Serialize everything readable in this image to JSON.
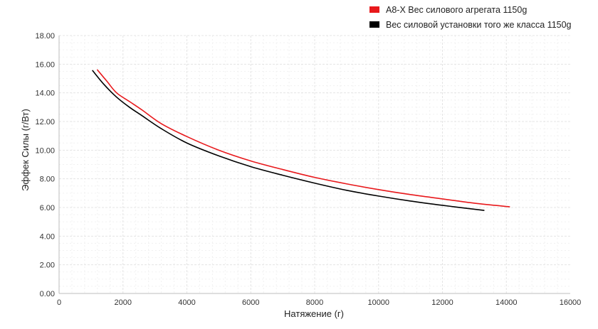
{
  "chart_data": {
    "type": "line",
    "xlabel": "Натяжение (г)",
    "ylabel": "Эффек Силы (г/Вт)",
    "xlim": [
      0,
      16000
    ],
    "ylim": [
      0,
      18
    ],
    "x_ticks": [
      "0",
      "2000",
      "4000",
      "6000",
      "8000",
      "10000",
      "12000",
      "14000",
      "16000"
    ],
    "y_ticks": [
      "0.00",
      "2.00",
      "4.00",
      "6.00",
      "8.00",
      "10.00",
      "12.00",
      "14.00",
      "16.00",
      "18.00"
    ],
    "grid": true,
    "legend_position": "top-right",
    "series": [
      {
        "name": "A8-X Вес силового агрегата 1150g",
        "color": "#e8191c",
        "points": [
          [
            1200,
            15.6
          ],
          [
            1500,
            14.8
          ],
          [
            1800,
            14.0
          ],
          [
            2200,
            13.4
          ],
          [
            2600,
            12.8
          ],
          [
            3200,
            11.85
          ],
          [
            4000,
            10.95
          ],
          [
            5000,
            10.0
          ],
          [
            6000,
            9.25
          ],
          [
            7000,
            8.65
          ],
          [
            8000,
            8.1
          ],
          [
            9000,
            7.65
          ],
          [
            10000,
            7.25
          ],
          [
            11000,
            6.9
          ],
          [
            12000,
            6.6
          ],
          [
            13000,
            6.3
          ],
          [
            14100,
            6.05
          ]
        ]
      },
      {
        "name": "Вес силовой установки того же класса 1150g",
        "color": "#000000",
        "points": [
          [
            1050,
            15.55
          ],
          [
            1400,
            14.6
          ],
          [
            1800,
            13.7
          ],
          [
            2200,
            13.0
          ],
          [
            2600,
            12.4
          ],
          [
            3200,
            11.5
          ],
          [
            4000,
            10.5
          ],
          [
            5000,
            9.6
          ],
          [
            6000,
            8.85
          ],
          [
            7000,
            8.25
          ],
          [
            8000,
            7.7
          ],
          [
            9000,
            7.2
          ],
          [
            10000,
            6.8
          ],
          [
            11000,
            6.45
          ],
          [
            12000,
            6.15
          ],
          [
            13300,
            5.8
          ]
        ]
      }
    ]
  }
}
